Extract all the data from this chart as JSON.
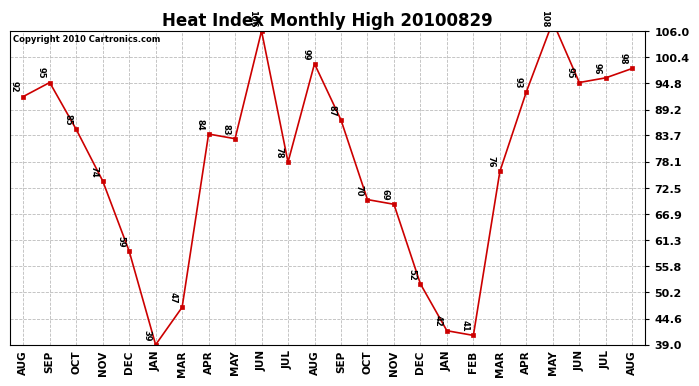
{
  "title": "Heat Index Monthly High 20100829",
  "copyright": "Copyright 2010 Cartronics.com",
  "months": [
    "AUG",
    "SEP",
    "OCT",
    "NOV",
    "DEC",
    "JAN",
    "MAR",
    "APR",
    "MAY",
    "JUN",
    "JUL",
    "AUG",
    "SEP",
    "OCT",
    "NOV",
    "DEC",
    "JAN",
    "FEB",
    "MAR",
    "APR",
    "MAY",
    "JUN",
    "JUL",
    "AUG"
  ],
  "values": [
    92,
    95,
    85,
    74,
    59,
    39,
    47,
    84,
    83,
    106,
    78,
    99,
    87,
    70,
    69,
    52,
    42,
    41,
    76,
    93,
    108,
    95,
    96,
    98
  ],
  "line_color": "#cc0000",
  "marker_color": "#cc0000",
  "bg_color": "#ffffff",
  "grid_color": "#bbbbbb",
  "title_fontsize": 12,
  "yticks": [
    39.0,
    44.6,
    50.2,
    55.8,
    61.3,
    66.9,
    72.5,
    78.1,
    83.7,
    89.2,
    94.8,
    100.4,
    106.0
  ],
  "ymin": 39.0,
  "ymax": 106.0
}
